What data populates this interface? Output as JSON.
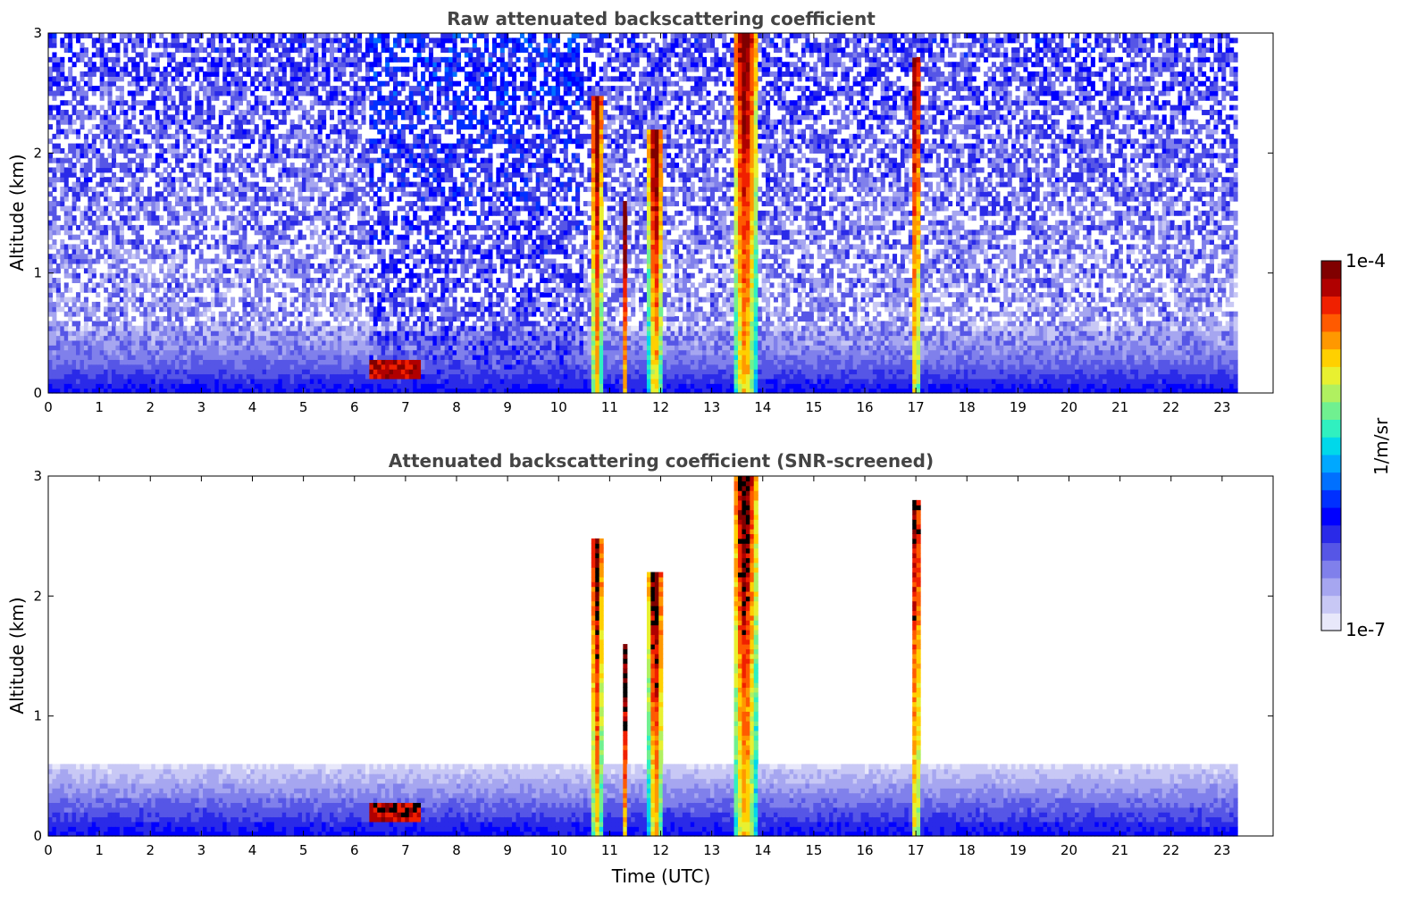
{
  "chart_data": [
    {
      "type": "heatmap",
      "title": "Raw attenuated backscattering coefficient",
      "xlabel": "",
      "ylabel": "Altitude (km)",
      "x_ticks": [
        "0",
        "1",
        "2",
        "3",
        "4",
        "5",
        "6",
        "7",
        "8",
        "9",
        "10",
        "11",
        "12",
        "13",
        "14",
        "15",
        "16",
        "17",
        "18",
        "19",
        "20",
        "21",
        "22",
        "23"
      ],
      "y_ticks": [
        "0",
        "1",
        "2",
        "3"
      ],
      "xlim": [
        0,
        24
      ],
      "ylim": [
        0,
        3
      ],
      "data_end_hour": 23.3,
      "screened": false,
      "boundary_layer": {
        "top_km": 0.55
      },
      "fog_layer": [
        {
          "start": 6.3,
          "end": 7.3,
          "top_km": 0.3
        }
      ],
      "cloud_columns": [
        {
          "center_hour": 10.75,
          "width_hour": 0.2,
          "top_km": 2.5
        },
        {
          "center_hour": 11.3,
          "width_hour": 0.12,
          "top_km": 1.6
        },
        {
          "center_hour": 11.9,
          "width_hour": 0.25,
          "top_km": 2.2
        },
        {
          "center_hour": 13.65,
          "width_hour": 0.4,
          "top_km": 3.0
        },
        {
          "center_hour": 17.0,
          "width_hour": 0.15,
          "top_km": 2.8
        }
      ]
    },
    {
      "type": "heatmap",
      "title": "Attenuated backscattering coefficient (SNR-screened)",
      "xlabel": "Time (UTC)",
      "ylabel": "Altitude (km)",
      "x_ticks": [
        "0",
        "1",
        "2",
        "3",
        "4",
        "5",
        "6",
        "7",
        "8",
        "9",
        "10",
        "11",
        "12",
        "13",
        "14",
        "15",
        "16",
        "17",
        "18",
        "19",
        "20",
        "21",
        "22",
        "23"
      ],
      "y_ticks": [
        "0",
        "1",
        "2",
        "3"
      ],
      "xlim": [
        0,
        24
      ],
      "ylim": [
        0,
        3
      ],
      "data_end_hour": 23.3,
      "screened": true,
      "boundary_layer": {
        "top_km": 0.6
      },
      "fog_layer": [
        {
          "start": 6.3,
          "end": 7.3,
          "top_km": 0.3
        }
      ],
      "cloud_columns": [
        {
          "center_hour": 10.75,
          "width_hour": 0.2,
          "top_km": 2.5
        },
        {
          "center_hour": 11.3,
          "width_hour": 0.12,
          "top_km": 1.6
        },
        {
          "center_hour": 11.9,
          "width_hour": 0.25,
          "top_km": 2.2
        },
        {
          "center_hour": 13.65,
          "width_hour": 0.4,
          "top_km": 3.0
        },
        {
          "center_hour": 17.0,
          "width_hour": 0.15,
          "top_km": 2.8
        }
      ]
    }
  ],
  "colorbar": {
    "label": "1/m/sr",
    "max_label": "1e-4",
    "min_label": "1e-7",
    "colors": [
      "#e8e8fa",
      "#c8c8f5",
      "#a6a6f0",
      "#8080eb",
      "#5656e6",
      "#2a2ae8",
      "#0000ff",
      "#0030ff",
      "#0070ff",
      "#00a8ff",
      "#00d8ea",
      "#30f0c0",
      "#70f090",
      "#b0f060",
      "#e8f030",
      "#ffd000",
      "#ff9800",
      "#ff5a00",
      "#f02000",
      "#b00000",
      "#800000"
    ]
  }
}
